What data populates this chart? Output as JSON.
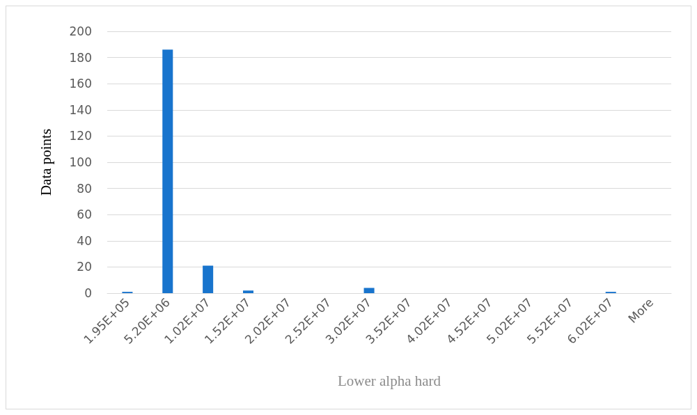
{
  "chart_data": {
    "type": "bar",
    "xlabel": "Lower alpha hard",
    "ylabel": "Data points",
    "categories": [
      "1.95E+05",
      "5.20E+06",
      "1.02E+07",
      "1.52E+07",
      "2.02E+07",
      "2.52E+07",
      "3.02E+07",
      "3.52E+07",
      "4.02E+07",
      "4.52E+07",
      "5.02E+07",
      "5.52E+07",
      "6.02E+07",
      "More"
    ],
    "values": [
      1,
      186,
      21,
      2,
      0,
      0,
      4,
      0,
      0,
      0,
      0,
      0,
      1,
      0
    ],
    "color": "#1874cd",
    "ylim": [
      0,
      200
    ],
    "yticks": [
      0,
      20,
      40,
      60,
      80,
      100,
      120,
      140,
      160,
      180,
      200
    ],
    "grid": "y"
  }
}
